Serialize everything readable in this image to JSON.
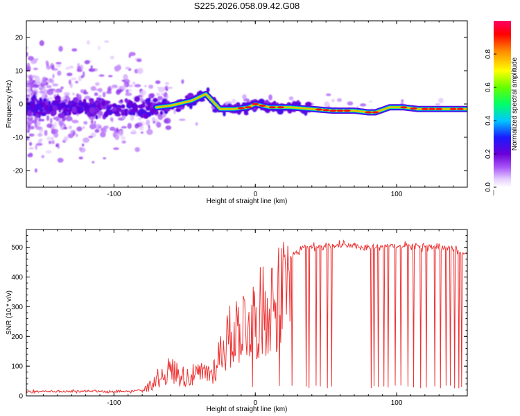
{
  "title": "S225.2026.058.09.42.G08",
  "chart_data": [
    {
      "type": "heatmap",
      "title": "S225.2026.058.09.42.G08",
      "xlabel": "Height of straight line (km)",
      "ylabel": "Frequency (Hz)",
      "xlim": [
        -162,
        150
      ],
      "ylim": [
        -25,
        25
      ],
      "xticks": [
        -100,
        0,
        100
      ],
      "yticks": [
        -20,
        -10,
        0,
        10,
        20
      ],
      "xtick_labels": [
        "-100",
        "0",
        "100"
      ],
      "ytick_labels": [
        "-20",
        "-10",
        "0",
        "10",
        "20"
      ],
      "ridge": {
        "x": [
          -162,
          -100,
          -80,
          -60,
          -45,
          -35,
          -25,
          -15,
          -5,
          0,
          10,
          25,
          40,
          55,
          70,
          80,
          85,
          95,
          105,
          115,
          130,
          150
        ],
        "freq": [
          -1,
          -1,
          -1.5,
          -0.5,
          1,
          3,
          -1.5,
          -1.5,
          -1,
          0,
          -1,
          -1,
          -1.5,
          -2,
          -2,
          -2.5,
          -2.5,
          -1,
          -1,
          -1.5,
          -1.5,
          -1.5
        ],
        "amplitude": [
          0.2,
          0.2,
          0.3,
          0.4,
          0.45,
          0.5,
          0.7,
          0.75,
          0.85,
          0.9,
          0.92,
          0.9,
          0.88,
          0.9,
          0.85,
          0.9,
          0.85,
          0.85,
          0.9,
          0.88,
          0.9,
          0.85
        ]
      },
      "colorbar": {
        "label": "Normalized spectral amplitude",
        "range": [
          0,
          1
        ],
        "ticks": [
          0,
          0.2,
          0.4,
          0.6,
          0.8
        ],
        "tick_labels": [
          "0.0",
          "0.2",
          "0.4",
          "0.6",
          "0.8"
        ]
      }
    },
    {
      "type": "line",
      "xlabel": "Height of straight line (km)",
      "ylabel": "SNR (10 * v/v)",
      "xlim": [
        -162,
        150
      ],
      "ylim": [
        0,
        560
      ],
      "xticks": [
        -100,
        0,
        100
      ],
      "yticks": [
        0,
        100,
        200,
        300,
        400,
        500
      ],
      "xtick_labels": [
        "-100",
        "0",
        "100"
      ],
      "ytick_labels": [
        "0",
        "100",
        "200",
        "300",
        "400",
        "500"
      ],
      "color": "#ee3333",
      "envelope_x": [
        -162,
        -90,
        -80,
        -75,
        -70,
        -60,
        -50,
        -40,
        -30,
        -25,
        -20,
        -15,
        -10,
        -5,
        0,
        10,
        20,
        25,
        30,
        40,
        60,
        80,
        100,
        120,
        140,
        150
      ],
      "envelope_snr": [
        15,
        15,
        20,
        40,
        70,
        110,
        80,
        90,
        100,
        180,
        230,
        270,
        300,
        310,
        330,
        380,
        430,
        470,
        490,
        505,
        505,
        500,
        505,
        500,
        495,
        480
      ],
      "dropouts_x": [
        -2,
        17,
        26,
        36,
        38,
        43,
        46,
        51,
        54,
        82,
        84,
        87,
        91,
        94,
        99,
        103,
        108,
        112,
        117,
        121,
        127,
        131,
        135,
        138,
        141,
        144,
        146
      ],
      "dropout_level": 25
    }
  ]
}
